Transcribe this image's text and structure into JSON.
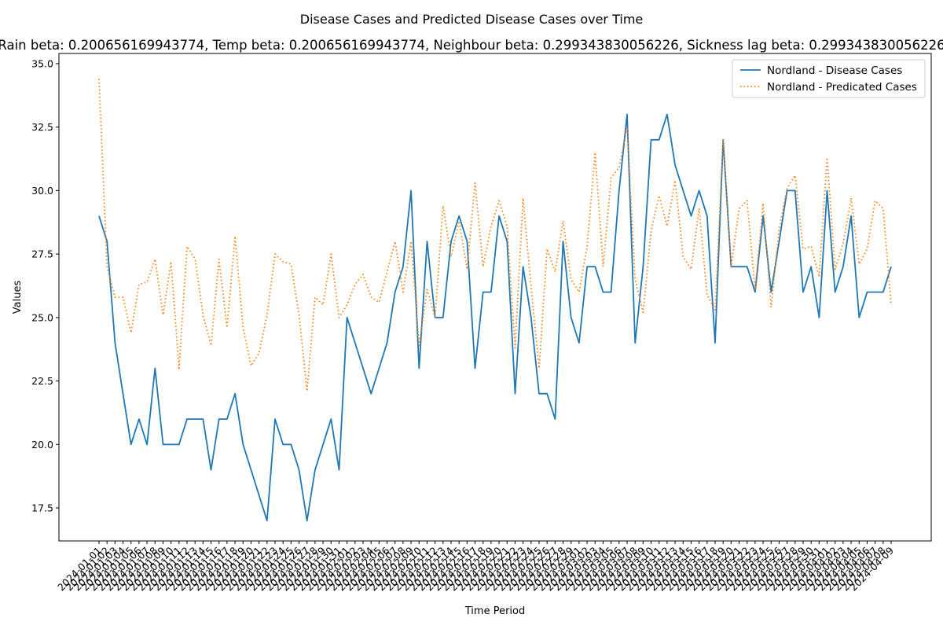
{
  "chart_data": {
    "type": "line",
    "suptitle": "Disease Cases and Predicted Disease Cases over Time",
    "title": "Rain beta: 0.200656169943774, Temp beta: 0.200656169943774, Neighbour beta: 0.299343830056226, Sickness lag beta: 0.299343830056226",
    "xlabel": "Time Period",
    "ylabel": "Values",
    "ylim": [
      16.2,
      35.4
    ],
    "yticks": [
      "17.5",
      "20.0",
      "22.5",
      "25.0",
      "27.5",
      "30.0",
      "32.5",
      "35.0"
    ],
    "legend_position": "top-right",
    "grid": false,
    "x": [
      "2024-01-01",
      "2024-01-02",
      "2024-01-03",
      "2024-01-04",
      "2024-01-05",
      "2024-01-06",
      "2024-01-07",
      "2024-01-08",
      "2024-01-09",
      "2024-01-10",
      "2024-01-11",
      "2024-01-12",
      "2024-01-13",
      "2024-01-14",
      "2024-01-15",
      "2024-01-16",
      "2024-01-17",
      "2024-01-18",
      "2024-01-19",
      "2024-01-20",
      "2024-01-21",
      "2024-01-22",
      "2024-01-23",
      "2024-01-24",
      "2024-01-25",
      "2024-01-26",
      "2024-01-27",
      "2024-01-28",
      "2024-01-29",
      "2024-01-30",
      "2024-01-31",
      "2024-02-01",
      "2024-02-02",
      "2024-02-03",
      "2024-02-04",
      "2024-02-05",
      "2024-02-06",
      "2024-02-07",
      "2024-02-08",
      "2024-02-09",
      "2024-02-10",
      "2024-02-11",
      "2024-02-12",
      "2024-02-13",
      "2024-02-14",
      "2024-02-15",
      "2024-02-16",
      "2024-02-17",
      "2024-02-18",
      "2024-02-19",
      "2024-02-20",
      "2024-02-21",
      "2024-02-22",
      "2024-02-23",
      "2024-02-24",
      "2024-02-25",
      "2024-02-26",
      "2024-02-27",
      "2024-02-28",
      "2024-02-29",
      "2024-03-01",
      "2024-03-02",
      "2024-03-03",
      "2024-03-04",
      "2024-03-05",
      "2024-03-06",
      "2024-03-07",
      "2024-03-08",
      "2024-03-09",
      "2024-03-10",
      "2024-03-11",
      "2024-03-12",
      "2024-03-13",
      "2024-03-14",
      "2024-03-15",
      "2024-03-16",
      "2024-03-17",
      "2024-03-18",
      "2024-03-19",
      "2024-03-20",
      "2024-03-21",
      "2024-03-22",
      "2024-03-23",
      "2024-03-24",
      "2024-03-25",
      "2024-03-26",
      "2024-03-27",
      "2024-03-28",
      "2024-03-29",
      "2024-03-30",
      "2024-03-31",
      "2024-04-01",
      "2024-04-02",
      "2024-04-03",
      "2024-04-04",
      "2024-04-05",
      "2024-04-06",
      "2024-04-07",
      "2024-04-08",
      "2024-04-09"
    ],
    "series": [
      {
        "name": "Nordland - Disease Cases",
        "color": "#1f77b4",
        "style": "solid",
        "values": [
          29,
          28,
          24,
          22,
          20,
          21,
          20,
          23,
          20,
          20,
          20,
          21,
          21,
          21,
          19,
          21,
          21,
          22,
          20,
          19,
          18,
          17,
          21,
          20,
          20,
          19,
          17,
          19,
          20,
          21,
          19,
          25,
          24,
          23,
          22,
          23,
          24,
          26,
          27,
          30,
          23,
          28,
          25,
          25,
          28,
          29,
          28,
          23,
          26,
          26,
          29,
          28,
          22,
          27,
          25,
          22,
          22,
          21,
          28,
          25,
          24,
          27,
          27,
          26,
          26,
          30,
          33,
          24,
          27,
          32,
          32,
          33,
          31,
          30,
          29,
          30,
          29,
          24,
          32,
          27,
          27,
          27,
          26,
          29,
          26,
          28,
          30,
          30,
          26,
          27,
          25,
          30,
          26,
          27,
          29,
          25,
          26,
          26,
          26,
          27
        ]
      },
      {
        "name": "Nordland - Predicated Cases",
        "color": "#ff7f0e",
        "style": "dotted",
        "values": [
          34.4,
          27.0,
          25.8,
          25.8,
          24.4,
          26.3,
          26.4,
          27.3,
          25.1,
          27.2,
          23.0,
          27.8,
          27.3,
          25.1,
          23.9,
          27.3,
          24.6,
          28.2,
          24.6,
          23.1,
          23.6,
          25.1,
          27.5,
          27.2,
          27.1,
          25.1,
          22.1,
          25.8,
          25.5,
          27.5,
          25.0,
          25.5,
          26.3,
          26.7,
          25.8,
          25.6,
          26.8,
          28.0,
          26.0,
          28.0,
          23.9,
          26.1,
          25.0,
          29.4,
          27.4,
          28.8,
          26.9,
          30.3,
          27.0,
          28.6,
          29.6,
          28.6,
          23.8,
          29.7,
          26.2,
          23.0,
          27.7,
          26.8,
          28.8,
          26.5,
          26.0,
          27.8,
          31.5,
          27.0,
          30.5,
          30.9,
          32.5,
          26.5,
          25.2,
          28.4,
          29.8,
          28.6,
          30.4,
          27.4,
          26.9,
          29.3,
          25.9,
          25.3,
          32.0,
          27.0,
          29.3,
          29.6,
          26.1,
          29.5,
          25.4,
          28.5,
          30.1,
          30.6,
          27.7,
          27.8,
          26.6,
          31.3,
          26.9,
          27.9,
          29.7,
          27.1,
          27.7,
          29.6,
          29.3,
          25.5
        ]
      }
    ]
  }
}
